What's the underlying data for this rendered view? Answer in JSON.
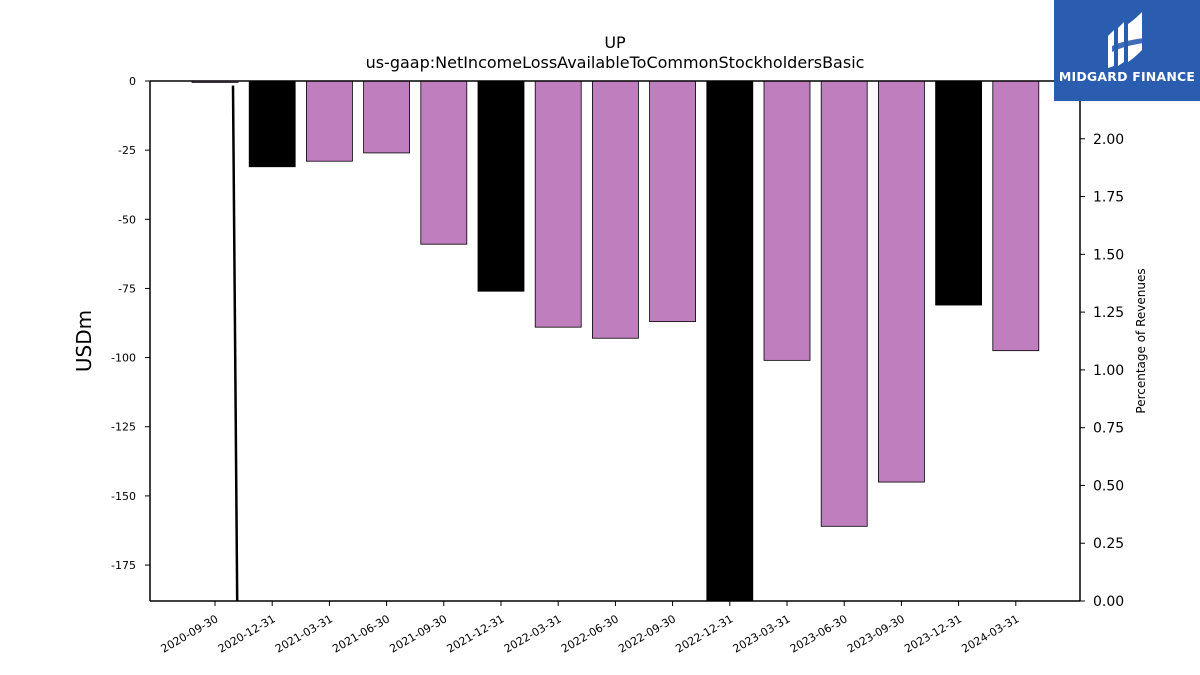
{
  "chart_data": {
    "type": "bar",
    "title": "UP",
    "subtitle": "us-gaap:NetIncomeLossAvailableToCommonStockholdersBasic",
    "ylabel": "USDm",
    "y2label": "Percentage of Revenues",
    "categories": [
      "2020-09-30",
      "2020-12-31",
      "2021-03-31",
      "2021-06-30",
      "2021-09-30",
      "2021-12-31",
      "2022-03-31",
      "2022-06-30",
      "2022-09-30",
      "2022-12-31",
      "2023-03-31",
      "2023-06-30",
      "2023-09-30",
      "2023-12-31",
      "2024-03-31"
    ],
    "values": [
      -0.5,
      -31,
      -29,
      -26,
      -59,
      -76,
      -89,
      -93,
      -87,
      -188,
      -101,
      -161,
      -145,
      -81,
      -97.5
    ],
    "bar_colors": [
      "#bf7fbf",
      "#000000",
      "#bf7fbf",
      "#bf7fbf",
      "#bf7fbf",
      "#000000",
      "#bf7fbf",
      "#bf7fbf",
      "#bf7fbf",
      "#000000",
      "#bf7fbf",
      "#bf7fbf",
      "#bf7fbf",
      "#000000",
      "#bf7fbf"
    ],
    "ylim": [
      -188,
      0
    ],
    "y_ticks": [
      0,
      -25,
      -50,
      -75,
      -100,
      -125,
      -150,
      -175
    ],
    "y2lim": [
      0,
      2.25
    ],
    "y2_ticks": [
      "0.00",
      "0.25",
      "0.50",
      "0.75",
      "1.00",
      "1.25",
      "1.50",
      "1.75",
      "2.00"
    ],
    "line_series": {
      "x": [
        "2020-09-30",
        "2020-12-31"
      ],
      "values": [
        2.23,
        0.0
      ],
      "color": "#000000"
    },
    "grid": false,
    "legend": "none"
  },
  "logo": {
    "text": "MIDGARD FINANCE",
    "background": "#2a5db0",
    "color": "#ffffff"
  }
}
